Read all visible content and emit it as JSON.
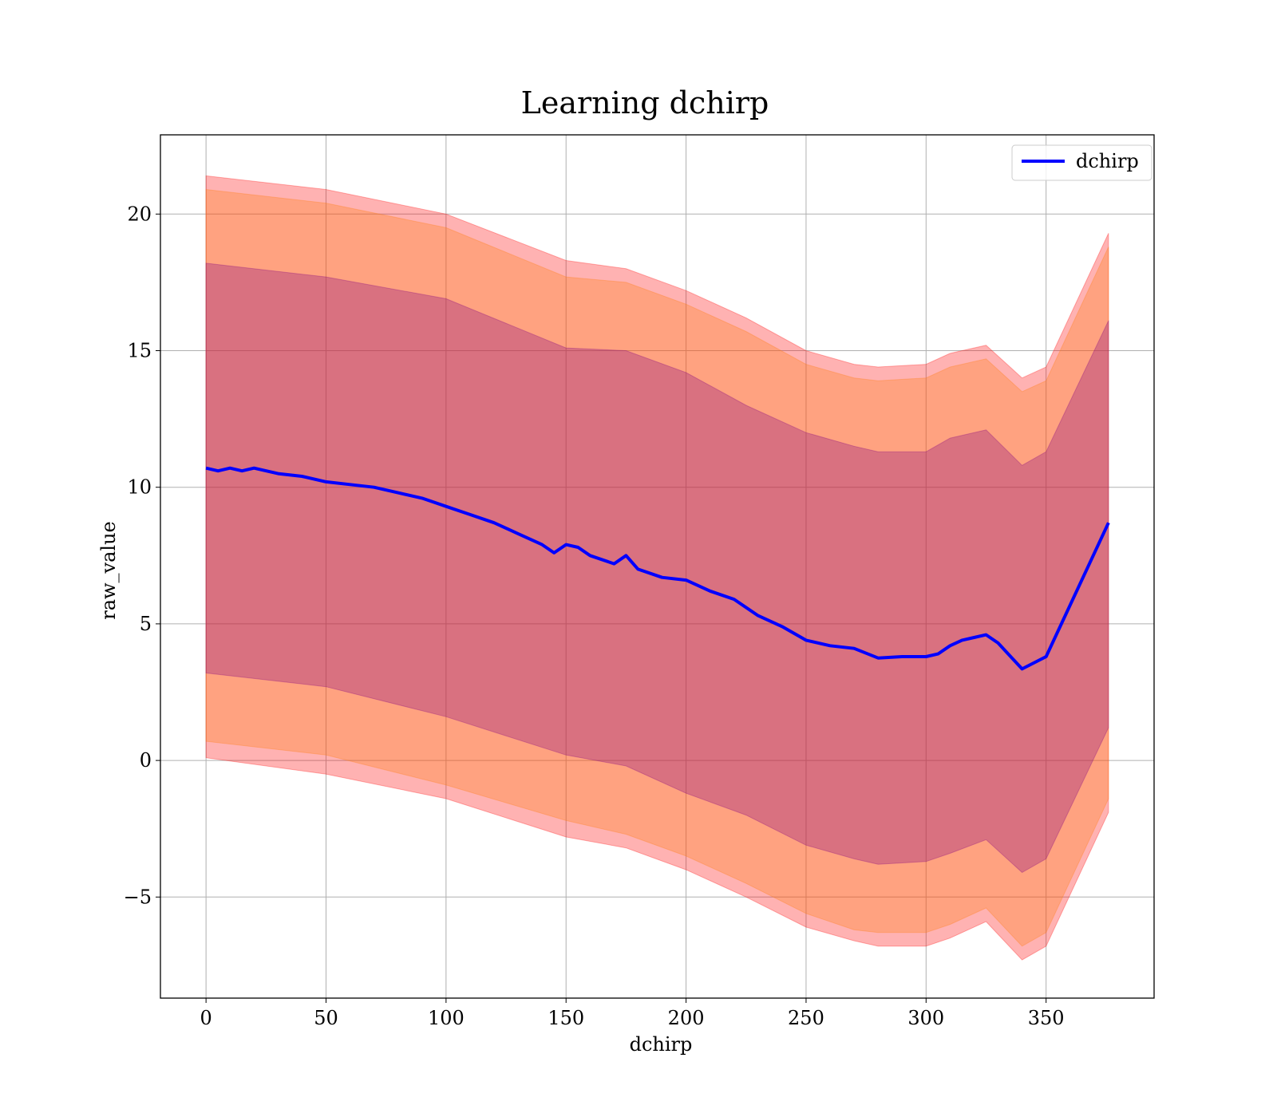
{
  "chart_data": {
    "type": "line",
    "title": "Learning dchirp",
    "xlabel": "dchirp",
    "ylabel": "raw_value",
    "xlim": [
      -19,
      395
    ],
    "ylim": [
      -8.7,
      22.9
    ],
    "xticks": [
      0,
      50,
      100,
      150,
      200,
      250,
      300,
      350
    ],
    "xtick_labels": [
      "0",
      "50",
      "100",
      "150",
      "200",
      "250",
      "300",
      "350"
    ],
    "yticks": [
      -5,
      0,
      5,
      10,
      15,
      20
    ],
    "ytick_labels": [
      "−5",
      "0",
      "5",
      "10",
      "15",
      "20"
    ],
    "grid": true,
    "legend": {
      "position": "top-right",
      "entries": [
        "dchirp"
      ]
    },
    "colors": {
      "line": "#0000ff",
      "band_outer": "#ff0000",
      "band_middle": "#ff7f0e",
      "band_inner": "#800080"
    },
    "series": [
      {
        "name": "dchirp",
        "x": [
          0,
          5,
          10,
          15,
          20,
          30,
          40,
          50,
          60,
          70,
          80,
          90,
          100,
          110,
          120,
          130,
          140,
          145,
          150,
          155,
          160,
          170,
          175,
          180,
          190,
          200,
          210,
          220,
          230,
          240,
          250,
          260,
          270,
          280,
          290,
          300,
          305,
          310,
          315,
          320,
          325,
          330,
          340,
          350,
          376
        ],
        "y": [
          10.7,
          10.6,
          10.7,
          10.6,
          10.7,
          10.5,
          10.4,
          10.2,
          10.1,
          10.0,
          9.8,
          9.6,
          9.3,
          9.0,
          8.7,
          8.3,
          7.9,
          7.6,
          7.9,
          7.8,
          7.5,
          7.2,
          7.5,
          7.0,
          6.7,
          6.6,
          6.2,
          5.9,
          5.3,
          4.9,
          4.4,
          4.2,
          4.1,
          3.75,
          3.8,
          3.8,
          3.9,
          4.2,
          4.4,
          4.5,
          4.6,
          4.3,
          3.35,
          3.8,
          8.7
        ]
      }
    ],
    "bands": [
      {
        "label": "outer",
        "x": [
          0,
          50,
          100,
          150,
          175,
          200,
          225,
          250,
          270,
          280,
          300,
          310,
          325,
          340,
          350,
          376
        ],
        "lower": [
          0.1,
          -0.5,
          -1.4,
          -2.8,
          -3.2,
          -4.0,
          -5.0,
          -6.1,
          -6.6,
          -6.8,
          -6.8,
          -6.5,
          -5.9,
          -7.3,
          -6.8,
          -1.9
        ],
        "upper": [
          21.4,
          20.9,
          20.0,
          18.3,
          18.0,
          17.2,
          16.2,
          15.0,
          14.5,
          14.4,
          14.5,
          14.9,
          15.2,
          14.0,
          14.4,
          19.3
        ]
      },
      {
        "label": "middle",
        "x": [
          0,
          50,
          100,
          150,
          175,
          200,
          225,
          250,
          270,
          280,
          300,
          310,
          325,
          340,
          350,
          376
        ],
        "lower": [
          0.7,
          0.2,
          -0.9,
          -2.2,
          -2.7,
          -3.5,
          -4.5,
          -5.6,
          -6.2,
          -6.3,
          -6.3,
          -6.0,
          -5.4,
          -6.8,
          -6.3,
          -1.4
        ],
        "upper": [
          20.9,
          20.4,
          19.5,
          17.7,
          17.5,
          16.7,
          15.7,
          14.5,
          14.0,
          13.9,
          14.0,
          14.4,
          14.7,
          13.5,
          13.9,
          18.8
        ]
      },
      {
        "label": "inner",
        "x": [
          0,
          50,
          100,
          150,
          175,
          200,
          225,
          250,
          270,
          280,
          300,
          310,
          325,
          340,
          350,
          376
        ],
        "lower": [
          3.2,
          2.7,
          1.6,
          0.2,
          -0.2,
          -1.2,
          -2.0,
          -3.1,
          -3.6,
          -3.8,
          -3.7,
          -3.4,
          -2.9,
          -4.1,
          -3.6,
          1.2
        ],
        "upper": [
          18.2,
          17.7,
          16.9,
          15.1,
          15.0,
          14.2,
          13.0,
          12.0,
          11.5,
          11.3,
          11.3,
          11.8,
          12.1,
          10.8,
          11.3,
          16.1
        ]
      }
    ]
  }
}
